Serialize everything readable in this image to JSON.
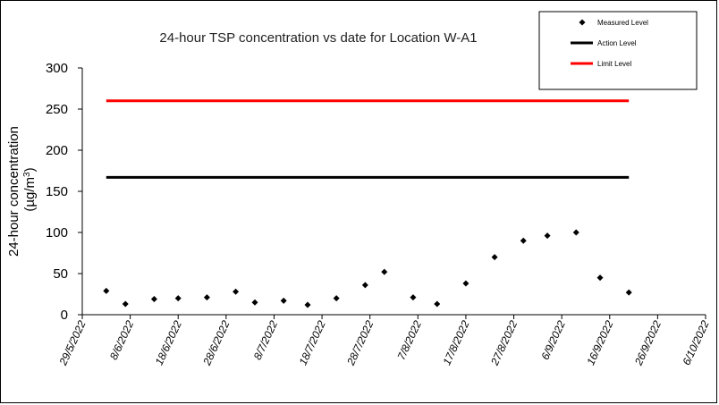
{
  "chart_data": {
    "type": "scatter",
    "title": "24-hour TSP concentration vs date for Location W-A1",
    "ylabel_line1": "24-hour concentration",
    "ylabel_line2": "(µg/m",
    "ylabel_sup": "3",
    "ylabel_close": ")",
    "ylim": [
      0,
      300
    ],
    "yticks": [
      0,
      50,
      100,
      150,
      200,
      250,
      300
    ],
    "xlim": [
      "2022-05-29",
      "2022-10-06"
    ],
    "xticks": [
      {
        "date": "2022-05-29",
        "label": "29/5/2022"
      },
      {
        "date": "2022-06-08",
        "label": "8/6/2022"
      },
      {
        "date": "2022-06-18",
        "label": "18/6/2022"
      },
      {
        "date": "2022-06-28",
        "label": "28/6/2022"
      },
      {
        "date": "2022-07-08",
        "label": "8/7/2022"
      },
      {
        "date": "2022-07-18",
        "label": "18/7/2022"
      },
      {
        "date": "2022-07-28",
        "label": "28/7/2022"
      },
      {
        "date": "2022-08-07",
        "label": "7/8/2022"
      },
      {
        "date": "2022-08-17",
        "label": "17/8/2022"
      },
      {
        "date": "2022-08-27",
        "label": "27/8/2022"
      },
      {
        "date": "2022-09-06",
        "label": "6/9/2022"
      },
      {
        "date": "2022-09-16",
        "label": "16/9/2022"
      },
      {
        "date": "2022-09-26",
        "label": "26/9/2022"
      },
      {
        "date": "2022-10-06",
        "label": "6/10/2022"
      }
    ],
    "grid": false,
    "legend_position": "top-right",
    "series": [
      {
        "name": "Measured Level",
        "kind": "points",
        "color": "#000000",
        "points": [
          {
            "x": "2022-06-03",
            "y": 29
          },
          {
            "x": "2022-06-07",
            "y": 13
          },
          {
            "x": "2022-06-13",
            "y": 19
          },
          {
            "x": "2022-06-18",
            "y": 20
          },
          {
            "x": "2022-06-24",
            "y": 21
          },
          {
            "x": "2022-06-30",
            "y": 28
          },
          {
            "x": "2022-07-04",
            "y": 15
          },
          {
            "x": "2022-07-10",
            "y": 17
          },
          {
            "x": "2022-07-15",
            "y": 12
          },
          {
            "x": "2022-07-21",
            "y": 20
          },
          {
            "x": "2022-07-27",
            "y": 36
          },
          {
            "x": "2022-07-31",
            "y": 52
          },
          {
            "x": "2022-08-06",
            "y": 21
          },
          {
            "x": "2022-08-11",
            "y": 13
          },
          {
            "x": "2022-08-17",
            "y": 38
          },
          {
            "x": "2022-08-23",
            "y": 70
          },
          {
            "x": "2022-08-29",
            "y": 90
          },
          {
            "x": "2022-09-03",
            "y": 96
          },
          {
            "x": "2022-09-09",
            "y": 100
          },
          {
            "x": "2022-09-14",
            "y": 45
          },
          {
            "x": "2022-09-20",
            "y": 27
          }
        ]
      },
      {
        "name": "Action Level",
        "kind": "line",
        "color": "#000000",
        "x_range": [
          "2022-06-03",
          "2022-09-20"
        ],
        "y": 167
      },
      {
        "name": "Limit Level",
        "kind": "line",
        "color": "#ff0000",
        "x_range": [
          "2022-06-03",
          "2022-09-20"
        ],
        "y": 260
      }
    ]
  }
}
